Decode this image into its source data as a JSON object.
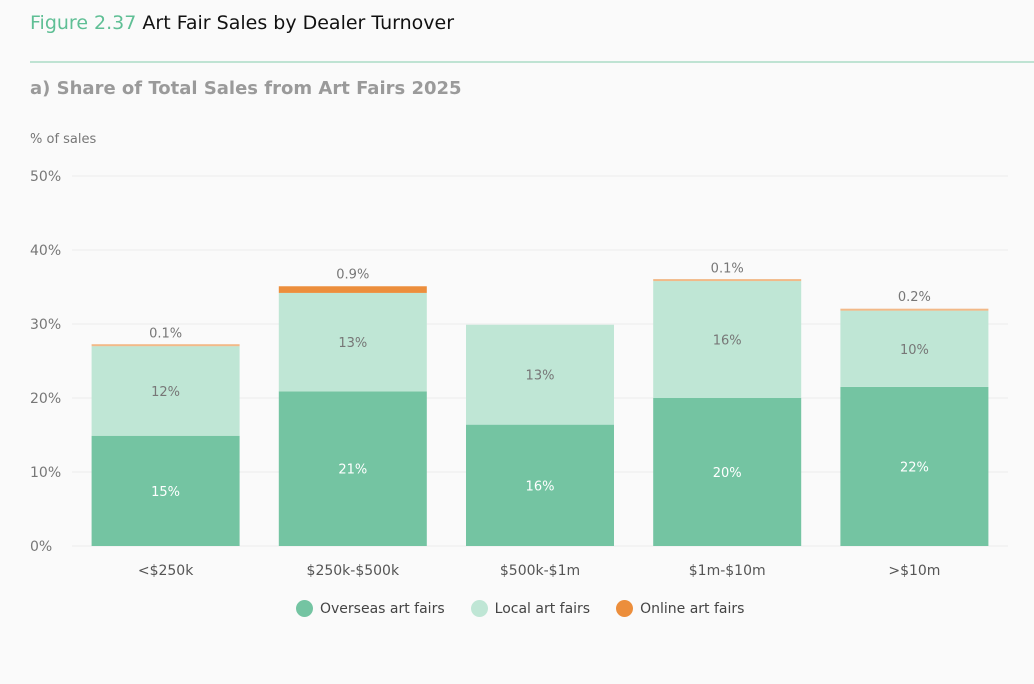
{
  "header": {
    "figure_number": "Figure 2.37",
    "title": "Art Fair Sales by Dealer Turnover",
    "subtitle": "a) Share of Total Sales from Art Fairs 2025"
  },
  "chart_data": {
    "type": "bar",
    "stacked": true,
    "ylabel": "% of sales",
    "ylim": [
      0,
      50
    ],
    "yticks": [
      "0%",
      "10%",
      "20%",
      "30%",
      "40%",
      "50%"
    ],
    "categories": [
      "<$250k",
      "$250k-$500k",
      "$500k-$1m",
      "$1m-$10m",
      ">$10m"
    ],
    "series": [
      {
        "name": "Overseas art fairs",
        "color": "#74c4a2",
        "values": [
          14.9,
          20.9,
          16.4,
          20.0,
          21.5
        ],
        "labels": [
          "15%",
          "21%",
          "16%",
          "20%",
          "22%"
        ],
        "label_color": "#ffffff"
      },
      {
        "name": "Local art fairs",
        "color": "#bfe6d5",
        "values": [
          12.1,
          13.3,
          13.5,
          15.8,
          10.3
        ],
        "labels": [
          "12%",
          "13%",
          "13%",
          "16%",
          "10%"
        ],
        "label_color": "#777777"
      },
      {
        "name": "Online art fairs",
        "color": "#ec8e3c",
        "values": [
          0.1,
          0.9,
          0,
          0.1,
          0.2
        ],
        "labels": [
          "0.1%",
          "0.9%",
          "",
          "0.1%",
          "0.2%"
        ],
        "label_color": "#777777"
      }
    ],
    "grid": true,
    "legend": "bottom"
  }
}
